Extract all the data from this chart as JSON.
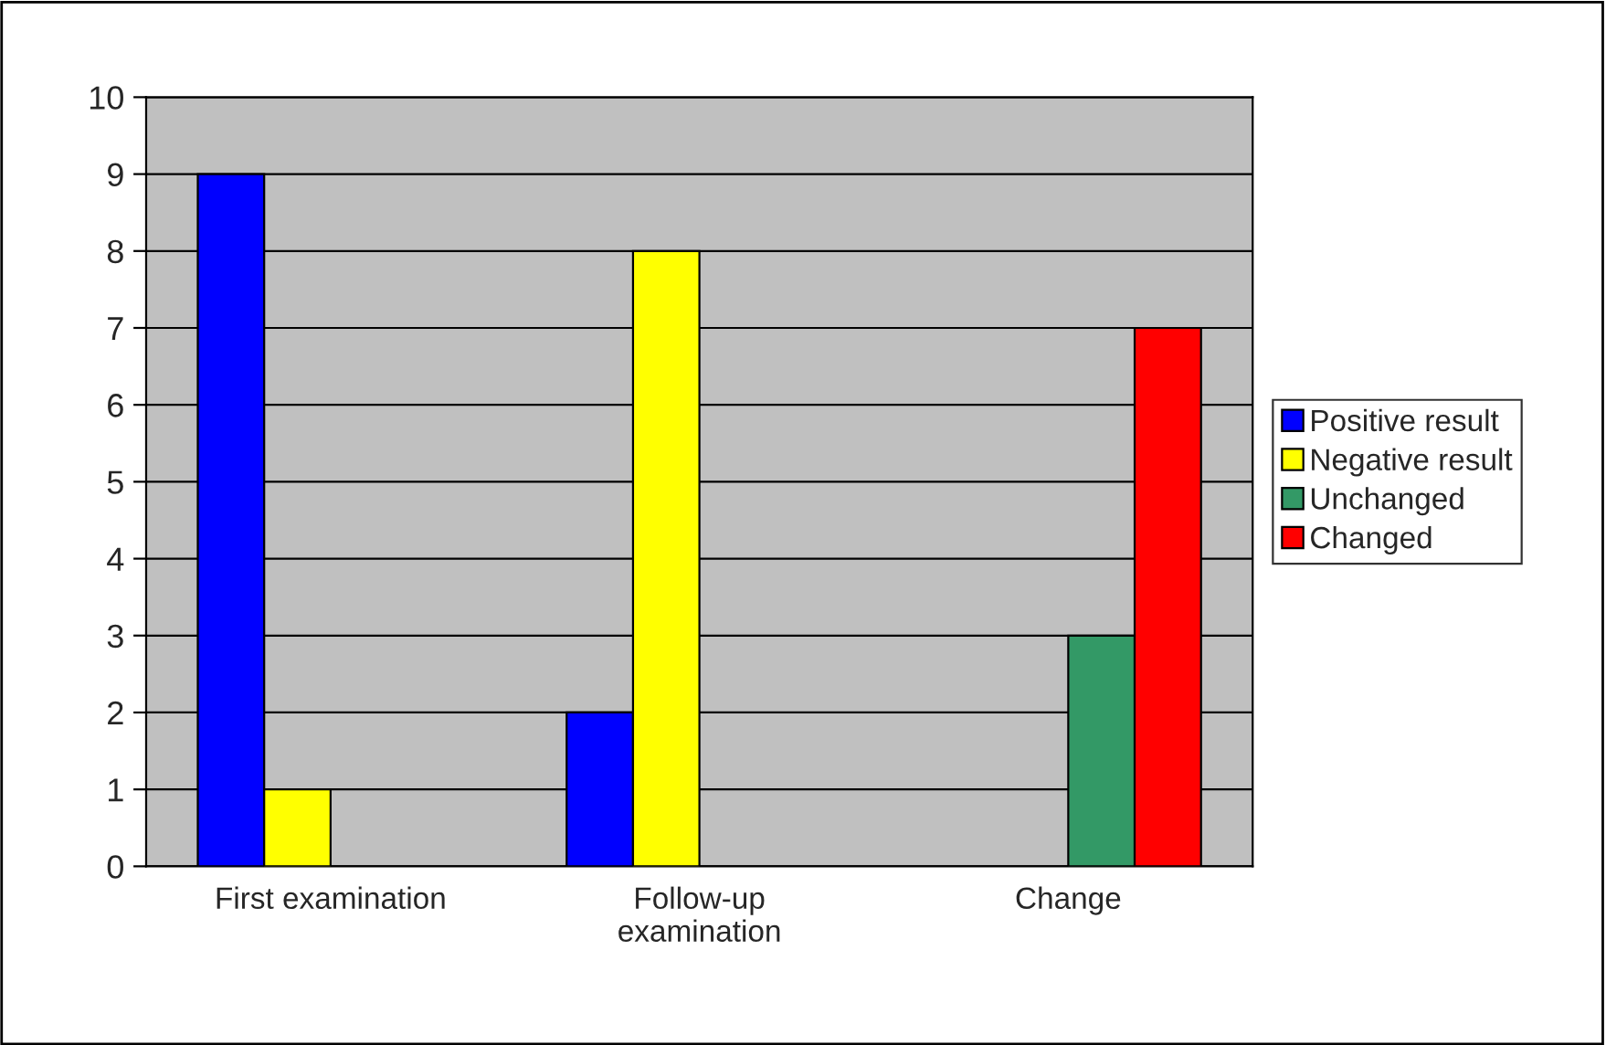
{
  "chart_data": {
    "type": "bar",
    "categories": [
      "First examination",
      "Follow-up\nexamination",
      "Change"
    ],
    "series": [
      {
        "name": "Positive result",
        "color": "#0000ff",
        "values": [
          9,
          2,
          null
        ]
      },
      {
        "name": "Negative result",
        "color": "#ffff00",
        "values": [
          1,
          8,
          null
        ]
      },
      {
        "name": "Unchanged",
        "color": "#339966",
        "values": [
          null,
          null,
          3
        ]
      },
      {
        "name": "Changed",
        "color": "#ff0000",
        "values": [
          null,
          null,
          7
        ]
      }
    ],
    "ylim": [
      0,
      10
    ],
    "yticks": [
      0,
      1,
      2,
      3,
      4,
      5,
      6,
      7,
      8,
      9,
      10
    ],
    "grid": "y",
    "legend": "right"
  }
}
